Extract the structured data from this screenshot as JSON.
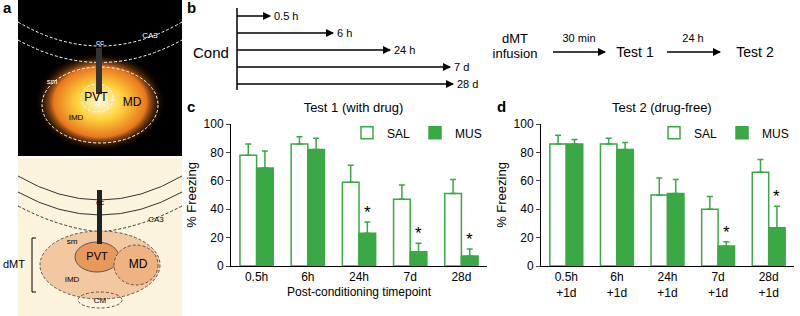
{
  "panel_labels": [
    "a",
    "b",
    "c",
    "d"
  ],
  "panel_a": {
    "top_labels": [
      "cc",
      "CA3",
      "sm",
      "PVT",
      "MD",
      "IMD"
    ],
    "bottom_labels": [
      "cc",
      "CA3",
      "sm",
      "PVT",
      "MD",
      "IMD",
      "CM",
      "dMT"
    ]
  },
  "panel_b": {
    "start": "Cond",
    "durations": [
      "0.5 h",
      "6 h",
      "24 h",
      "7 d",
      "28 d"
    ],
    "infusion": "dMT\ninfusion",
    "wait": "30 min",
    "test1": "Test 1",
    "gap": "24 h",
    "test2": "Test 2"
  },
  "chart_data": [
    {
      "type": "bar",
      "title": "Test 1 (with drug)",
      "x_label": "Post-conditioning timepoint",
      "y_label": "% Freezing",
      "categories": [
        "0.5h",
        "6h",
        "24h",
        "7d",
        "28d"
      ],
      "ylim": [
        0,
        100
      ],
      "yticks": [
        0,
        20,
        40,
        60,
        80,
        100
      ],
      "legend": "top right",
      "series": [
        {
          "name": "SAL",
          "color": "#3aa845",
          "marker": "open",
          "values": [
            78,
            86,
            59,
            47,
            51
          ],
          "errors": [
            8,
            5,
            12,
            10,
            10
          ]
        },
        {
          "name": "MUS",
          "color": "#3aa845",
          "marker": "filled",
          "values": [
            69,
            82,
            23,
            10,
            7
          ],
          "errors": [
            12,
            8,
            8,
            6,
            5
          ]
        }
      ],
      "annotations": [
        {
          "text": "*",
          "category": "24h",
          "series": "MUS"
        },
        {
          "text": "*",
          "category": "7d",
          "series": "MUS"
        },
        {
          "text": "*",
          "category": "28d",
          "series": "MUS"
        }
      ]
    },
    {
      "type": "bar",
      "title": "Test 2 (drug-free)",
      "y_label": "% Freezing",
      "categories": [
        "0.5h\n+1d",
        "6h\n+1d",
        "24h\n+1d",
        "7d\n+1d",
        "28d\n+1d"
      ],
      "ylim": [
        0,
        100
      ],
      "yticks": [
        0,
        20,
        40,
        60,
        80,
        100
      ],
      "legend": "top right",
      "series": [
        {
          "name": "SAL",
          "color": "#3aa845",
          "marker": "open",
          "values": [
            86,
            86,
            50,
            40,
            66
          ],
          "errors": [
            6,
            4,
            12,
            9,
            9
          ]
        },
        {
          "name": "MUS",
          "color": "#3aa845",
          "marker": "filled",
          "values": [
            86,
            82,
            51,
            14,
            27
          ],
          "errors": [
            3,
            5,
            10,
            3,
            15
          ]
        }
      ],
      "annotations": [
        {
          "text": "*",
          "category": "7d\n+1d",
          "series": "MUS"
        },
        {
          "text": "*",
          "category": "28d\n+1d",
          "series": "MUS"
        }
      ]
    }
  ]
}
